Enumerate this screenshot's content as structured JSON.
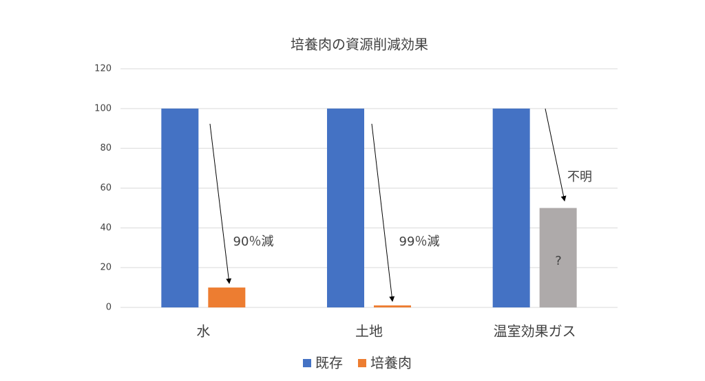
{
  "chart_data": {
    "type": "bar",
    "title": "培養肉の資源削減効果",
    "categories": [
      "水",
      "土地",
      "温室効果ガス"
    ],
    "series": [
      {
        "name": "既存",
        "color": "#4472c4",
        "values": [
          100,
          100,
          100
        ]
      },
      {
        "name": "培養肉",
        "color": "#ed7d31",
        "colors": [
          "#ed7d31",
          "#ed7d31",
          "#aeaaaa"
        ],
        "values": [
          10,
          1,
          50
        ]
      }
    ],
    "ylim": [
      0,
      120
    ],
    "yticks": [
      0,
      20,
      40,
      60,
      80,
      100,
      120
    ],
    "grid": true,
    "legend": "bottom",
    "annotations": [
      "90％減",
      "99％減",
      "不明",
      "?"
    ]
  }
}
